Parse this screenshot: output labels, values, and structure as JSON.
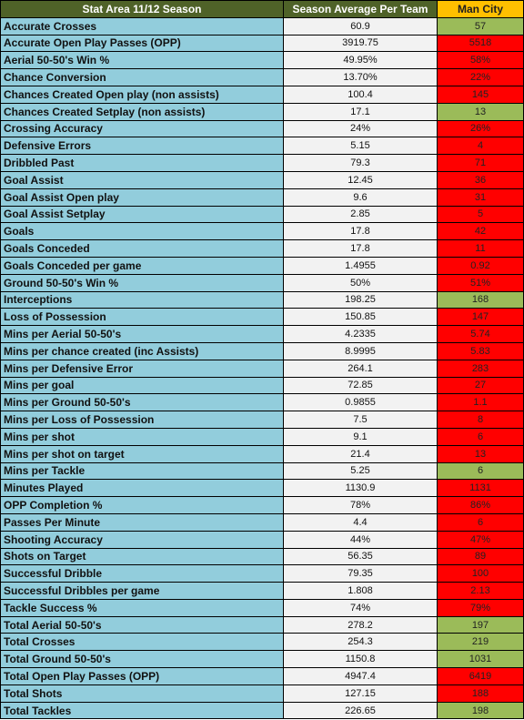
{
  "table": {
    "headers": [
      "Stat Area 11/12 Season",
      "Season Average Per Team",
      "Man City"
    ],
    "colors": {
      "green": "#9bbb59",
      "red": "#ff0000"
    },
    "rows": [
      {
        "stat": "Accurate Crosses",
        "average": "60.9",
        "man_city": "57",
        "color": "green"
      },
      {
        "stat": "Accurate Open Play Passes (OPP)",
        "average": "3919.75",
        "man_city": "5518",
        "color": "red"
      },
      {
        "stat": "Aerial 50-50's Win %",
        "average": "49.95%",
        "man_city": "58%",
        "color": "red"
      },
      {
        "stat": "Chance Conversion",
        "average": "13.70%",
        "man_city": "22%",
        "color": "red"
      },
      {
        "stat": "Chances Created Open play (non assists)",
        "average": "100.4",
        "man_city": "145",
        "color": "red"
      },
      {
        "stat": "Chances Created Setplay (non assists)",
        "average": "17.1",
        "man_city": "13",
        "color": "green"
      },
      {
        "stat": "Crossing Accuracy",
        "average": "24%",
        "man_city": "26%",
        "color": "red"
      },
      {
        "stat": "Defensive Errors",
        "average": "5.15",
        "man_city": "4",
        "color": "red"
      },
      {
        "stat": "Dribbled Past",
        "average": "79.3",
        "man_city": "71",
        "color": "red"
      },
      {
        "stat": "Goal Assist",
        "average": "12.45",
        "man_city": "36",
        "color": "red"
      },
      {
        "stat": "Goal Assist Open play",
        "average": "9.6",
        "man_city": "31",
        "color": "red"
      },
      {
        "stat": "Goal Assist Setplay",
        "average": "2.85",
        "man_city": "5",
        "color": "red"
      },
      {
        "stat": "Goals",
        "average": "17.8",
        "man_city": "42",
        "color": "red"
      },
      {
        "stat": "Goals Conceded",
        "average": "17.8",
        "man_city": "11",
        "color": "red"
      },
      {
        "stat": "Goals Conceded per game",
        "average": "1.4955",
        "man_city": "0.92",
        "color": "red"
      },
      {
        "stat": "Ground 50-50's Win %",
        "average": "50%",
        "man_city": "51%",
        "color": "red"
      },
      {
        "stat": "Interceptions",
        "average": "198.25",
        "man_city": "168",
        "color": "green"
      },
      {
        "stat": "Loss of Possession",
        "average": "150.85",
        "man_city": "147",
        "color": "red"
      },
      {
        "stat": "Mins per Aerial 50-50's",
        "average": "4.2335",
        "man_city": "5.74",
        "color": "red"
      },
      {
        "stat": "Mins per chance created (inc Assists)",
        "average": "8.9995",
        "man_city": "5.83",
        "color": "red"
      },
      {
        "stat": "Mins per Defensive Error",
        "average": "264.1",
        "man_city": "283",
        "color": "red"
      },
      {
        "stat": "Mins per goal",
        "average": "72.85",
        "man_city": "27",
        "color": "red"
      },
      {
        "stat": "Mins per Ground 50-50's",
        "average": "0.9855",
        "man_city": "1.1",
        "color": "red"
      },
      {
        "stat": "Mins per Loss of Possession",
        "average": "7.5",
        "man_city": "8",
        "color": "red"
      },
      {
        "stat": "Mins per shot",
        "average": "9.1",
        "man_city": "6",
        "color": "red"
      },
      {
        "stat": "Mins per shot on target",
        "average": "21.4",
        "man_city": "13",
        "color": "red"
      },
      {
        "stat": "Mins per Tackle",
        "average": "5.25",
        "man_city": "6",
        "color": "green"
      },
      {
        "stat": "Minutes Played",
        "average": "1130.9",
        "man_city": "1131",
        "color": "red"
      },
      {
        "stat": "OPP Completion %",
        "average": "78%",
        "man_city": "86%",
        "color": "red"
      },
      {
        "stat": "Passes Per Minute",
        "average": "4.4",
        "man_city": "6",
        "color": "red"
      },
      {
        "stat": "Shooting Accuracy",
        "average": "44%",
        "man_city": "47%",
        "color": "red"
      },
      {
        "stat": "Shots on Target",
        "average": "56.35",
        "man_city": "89",
        "color": "red"
      },
      {
        "stat": "Successful Dribble",
        "average": "79.35",
        "man_city": "100",
        "color": "red"
      },
      {
        "stat": "Successful Dribbles per game",
        "average": "1.808",
        "man_city": "2.13",
        "color": "red"
      },
      {
        "stat": "Tackle Success %",
        "average": "74%",
        "man_city": "79%",
        "color": "red"
      },
      {
        "stat": "Total Aerial 50-50's",
        "average": "278.2",
        "man_city": "197",
        "color": "green"
      },
      {
        "stat": "Total Crosses",
        "average": "254.3",
        "man_city": "219",
        "color": "green"
      },
      {
        "stat": "Total Ground 50-50's",
        "average": "1150.8",
        "man_city": "1031",
        "color": "green"
      },
      {
        "stat": "Total Open Play Passes (OPP)",
        "average": "4947.4",
        "man_city": "6419",
        "color": "red"
      },
      {
        "stat": "Total Shots",
        "average": "127.15",
        "man_city": "188",
        "color": "red"
      },
      {
        "stat": "Total Tackles",
        "average": "226.65",
        "man_city": "198",
        "color": "green"
      }
    ]
  }
}
